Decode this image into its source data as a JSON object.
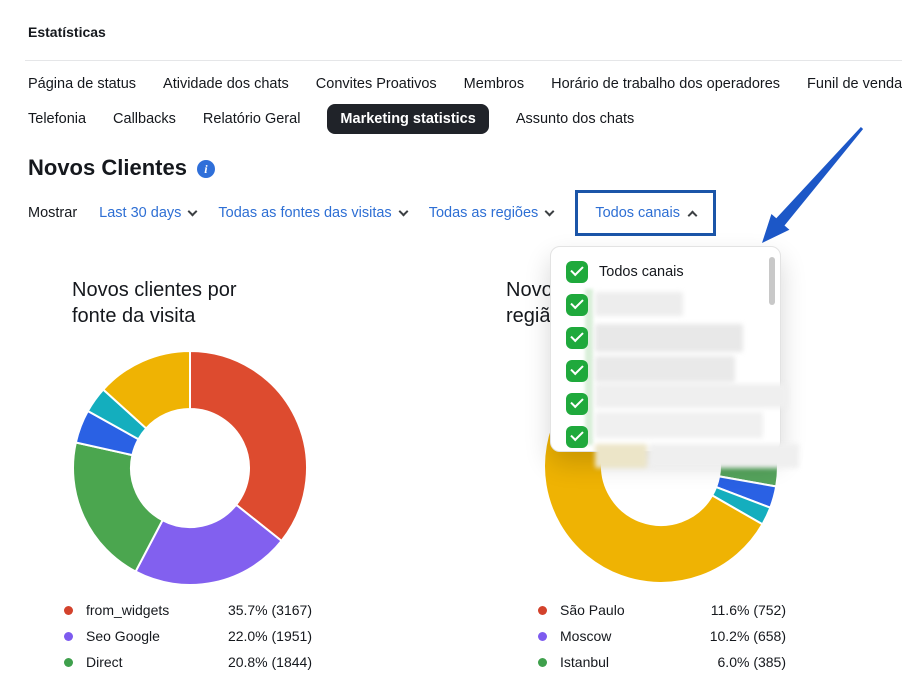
{
  "theme": {
    "text-dark": "#15181d",
    "link-blue": "#2e6fd4",
    "highlight-border": "#1b55a8",
    "checkbox-green": "#1fa93c",
    "active-tab-bg": "#202329",
    "arrow-blue": "#1c57c7"
  },
  "window": {
    "title": "Estatísticas"
  },
  "tabs": {
    "row1": [
      "Página de status",
      "Atividade dos chats",
      "Convites Proativos",
      "Membros",
      "Horário de trabalho dos operadores",
      "Funil de vendas"
    ],
    "row2": [
      "Telefonia",
      "Callbacks",
      "Relatório Geral"
    ],
    "active": "Marketing statistics",
    "row2_after": [
      "Assunto dos chats"
    ]
  },
  "section": {
    "title": "Novos Clientes",
    "info_icon": "i"
  },
  "filters": {
    "label": "Mostrar",
    "period": "Last 30 days",
    "sources": "Todas as fontes das visitas",
    "regions": "Todas as regiões",
    "channels": "Todos canais"
  },
  "channels_dropdown": {
    "items": [
      {
        "label": "Todos canais",
        "checked": true
      },
      {
        "label": "",
        "redacted": true,
        "checked": true
      },
      {
        "label": "",
        "redacted": true,
        "checked": true
      },
      {
        "label": "",
        "redacted": true,
        "checked": true
      },
      {
        "label": "",
        "redacted": true,
        "checked": true
      },
      {
        "label": "",
        "redacted": true,
        "checked": true
      }
    ]
  },
  "chart_data": [
    {
      "type": "pie",
      "subtype": "donut",
      "title": "Novos clientes por fonte da visita",
      "title_lines": [
        "Novos clientes por",
        "fonte da visita"
      ],
      "inner_radius_ratio": 0.5,
      "legend_position": "bottom",
      "segments": [
        {
          "label": "from_widgets",
          "pct": 35.7,
          "count": 3167,
          "color": "#dd4b2f"
        },
        {
          "label": "Seo Google",
          "pct": 22.0,
          "count": 1951,
          "color": "#8260ef"
        },
        {
          "label": "Direct",
          "pct": 20.8,
          "count": 1844,
          "color": "#4ba64f"
        },
        {
          "label": "",
          "pct": 4.6,
          "color": "#2a61e4"
        },
        {
          "label": "",
          "pct": 3.6,
          "color": "#14aebe"
        },
        {
          "label": "",
          "pct": 13.3,
          "color": "#efb303"
        }
      ],
      "legend": [
        {
          "label": "from_widgets",
          "value": "35.7% (3167)",
          "color": "#d3422c"
        },
        {
          "label": "Seo Google",
          "value": "22.0% (1951)",
          "color": "#7d5bef"
        },
        {
          "label": "Direct",
          "value": "20.8% (1844)",
          "color": "#3fa04c"
        }
      ]
    },
    {
      "type": "pie",
      "subtype": "donut",
      "title": "Novos clientes por região",
      "title_lines": [
        "Novos clientes por",
        "região"
      ],
      "inner_radius_ratio": 0.5,
      "legend_position": "bottom",
      "occluded_by_dropdown": true,
      "segments": [
        {
          "label": "São Paulo",
          "pct": 11.6,
          "count": 752,
          "color": "#dd4b2f"
        },
        {
          "label": "Moscow",
          "pct": 10.2,
          "count": 658,
          "color": "#8260ef"
        },
        {
          "label": "Istanbul",
          "pct": 6.0,
          "count": 385,
          "color": "#55a35c"
        },
        {
          "label": "",
          "pct": 3.0,
          "color": "#2a61e4"
        },
        {
          "label": "",
          "pct": 2.5,
          "color": "#14aebe"
        },
        {
          "label": "",
          "pct": 66.7,
          "color": "#efb303"
        }
      ],
      "legend": [
        {
          "label": "São Paulo",
          "value": "11.6% (752)",
          "color": "#d3422c"
        },
        {
          "label": "Moscow",
          "value": "10.2% (658)",
          "color": "#7d5bef"
        },
        {
          "label": "Istanbul",
          "value": "6.0% (385)",
          "color": "#3fa04c"
        }
      ]
    }
  ]
}
